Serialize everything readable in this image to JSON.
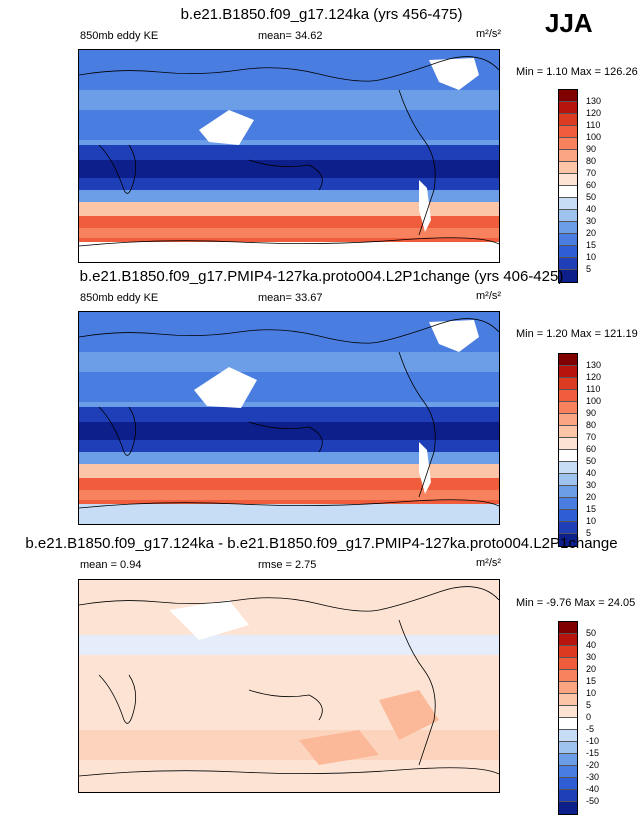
{
  "season": "JJA",
  "panels": [
    {
      "title": "b.e21.B1850.f09_g17.124ka (yrs 456-475)",
      "left_label": "850mb eddy KE",
      "center_label": "mean=  34.62",
      "units": "m²/s²",
      "minmax": "Min =  1.10 Max = 126.26",
      "kind": "abs"
    },
    {
      "title": "b.e21.B1850.f09_g17.PMIP4-127ka.proto004.L2P1change (yrs 406-425)",
      "left_label": "850mb eddy KE",
      "center_label": "mean=  33.67",
      "units": "m²/s²",
      "minmax": "Min =  1.20 Max = 121.19",
      "kind": "abs"
    },
    {
      "title": "b.e21.B1850.f09_g17.124ka - b.e21.B1850.f09_g17.PMIP4-127ka.proto004.L2P1change",
      "left_label": "mean =  0.94",
      "center_label": "rmse =  2.75",
      "units": "m²/s²",
      "minmax": "Min =  -9.76 Max = 24.05",
      "kind": "diff"
    }
  ],
  "colorbars": {
    "abs": {
      "labels": [
        "130",
        "120",
        "110",
        "100",
        "90",
        "80",
        "70",
        "60",
        "50",
        "40",
        "30",
        "20",
        "15",
        "10",
        "5"
      ],
      "colors": [
        "#800000",
        "#b8140e",
        "#dd3a22",
        "#f05d3c",
        "#f8825e",
        "#fba482",
        "#fcc5a8",
        "#fde3d4",
        "#ffffff",
        "#c7dcf5",
        "#9ec3ef",
        "#6c9ee8",
        "#4a7de0",
        "#2f5ed4",
        "#1e3fb8",
        "#0c1f8a"
      ]
    },
    "diff": {
      "labels": [
        "50",
        "40",
        "30",
        "20",
        "15",
        "10",
        "5",
        "0",
        "-5",
        "-10",
        "-15",
        "-20",
        "-30",
        "-40",
        "-50"
      ],
      "colors": [
        "#800000",
        "#b8140e",
        "#dd3a22",
        "#f05d3c",
        "#f8825e",
        "#fba482",
        "#fcc5a8",
        "#fde3d4",
        "#ffffff",
        "#c7dcf5",
        "#9ec3ef",
        "#6c9ee8",
        "#4a7de0",
        "#2f5ed4",
        "#1e3fb8",
        "#0c1f8a"
      ]
    }
  }
}
